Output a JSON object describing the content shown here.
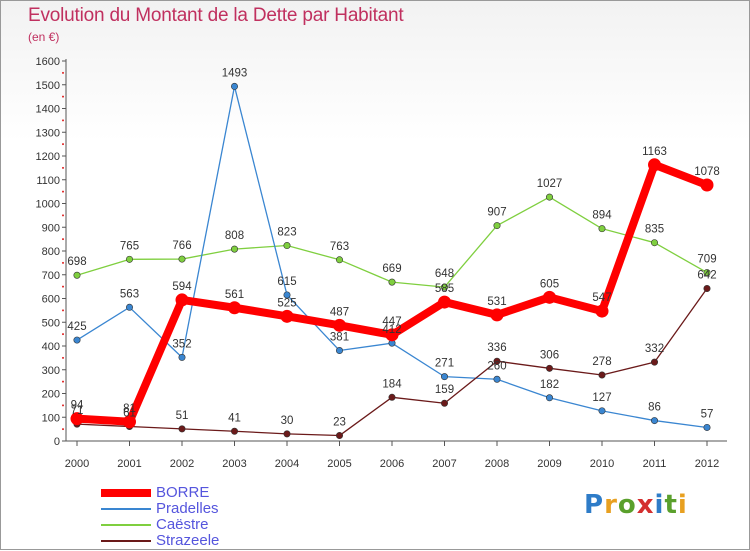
{
  "header": {
    "title": "Evolution du Montant de la Dette par Habitant",
    "subtitle": "(en €)"
  },
  "logo": {
    "text": "Proxiti",
    "colors": [
      "#2e7cc8",
      "#e8a020",
      "#5aa02c",
      "#d42f2f",
      "#2e7cc8",
      "#5aa02c",
      "#e8a020"
    ]
  },
  "chart_data": {
    "type": "line",
    "title": "Evolution du Montant de la Dette par Habitant",
    "subtitle": "(en €)",
    "x": [
      "2000",
      "2001",
      "2002",
      "2003",
      "2004",
      "2005",
      "2006",
      "2007",
      "2008",
      "2009",
      "2010",
      "2011",
      "2012"
    ],
    "ylim": [
      0,
      1600
    ],
    "yticks": [
      0,
      100,
      200,
      300,
      400,
      500,
      600,
      700,
      800,
      900,
      1000,
      1100,
      1200,
      1300,
      1400,
      1500,
      1600
    ],
    "grid": false,
    "legend_position": "bottom-left",
    "series": [
      {
        "name": "BORRE",
        "color": "#ff0000",
        "emphasis": true,
        "values": [
          94,
          81,
          594,
          561,
          525,
          487,
          447,
          585,
          531,
          605,
          547,
          1163,
          1078
        ],
        "labels": [
          "94",
          "81",
          "594",
          "561",
          "525",
          "487",
          "447",
          "585",
          "531",
          "605",
          "547",
          "1163",
          "1078"
        ]
      },
      {
        "name": "Pradelles",
        "color": "#3a86d1",
        "emphasis": false,
        "values": [
          425,
          563,
          352,
          1493,
          615,
          381,
          412,
          271,
          260,
          182,
          127,
          86,
          57
        ],
        "labels": [
          "425",
          "563",
          "352",
          "1493",
          "615",
          "381",
          "412",
          "271",
          "260",
          "182",
          "127",
          "86",
          "57"
        ]
      },
      {
        "name": "Caëstre",
        "color": "#7fcf3f",
        "emphasis": false,
        "values": [
          698,
          765,
          766,
          808,
          823,
          763,
          669,
          648,
          907,
          1027,
          894,
          835,
          709
        ],
        "labels": [
          "698",
          "765",
          "766",
          "808",
          "823",
          "763",
          "669",
          "648",
          "907",
          "1027",
          "894",
          "835",
          "709"
        ]
      },
      {
        "name": "Strazeele",
        "color": "#6b1a1a",
        "emphasis": false,
        "values": [
          71,
          61,
          51,
          41,
          30,
          23,
          184,
          159,
          336,
          306,
          278,
          332,
          642
        ],
        "labels": [
          "71",
          "61",
          "51",
          "41",
          "30",
          "23",
          "184",
          "159",
          "336",
          "306",
          "278",
          "332",
          "642"
        ]
      }
    ]
  }
}
